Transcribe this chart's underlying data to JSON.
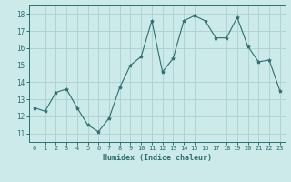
{
  "x": [
    0,
    1,
    2,
    3,
    4,
    5,
    6,
    7,
    8,
    9,
    10,
    11,
    12,
    13,
    14,
    15,
    16,
    17,
    18,
    19,
    20,
    21,
    22,
    23
  ],
  "y": [
    12.5,
    12.3,
    13.4,
    13.6,
    12.5,
    11.5,
    11.1,
    11.9,
    13.7,
    15.0,
    15.5,
    17.6,
    14.6,
    15.4,
    17.6,
    17.9,
    17.6,
    16.6,
    16.6,
    17.8,
    16.1,
    15.2,
    15.3,
    13.5
  ],
  "line_color": "#2d6e6e",
  "marker": "*",
  "marker_size": 3,
  "bg_color": "#cceaea",
  "grid_color": "#b0d4d4",
  "ylabel_ticks": [
    11,
    12,
    13,
    14,
    15,
    16,
    17,
    18
  ],
  "xlabel": "Humidex (Indice chaleur)",
  "xlim": [
    -0.5,
    23.5
  ],
  "ylim": [
    10.5,
    18.5
  ],
  "tick_color": "#2d6e6e",
  "label_color": "#2d6e6e",
  "axis_color": "#2d6e6e",
  "xtick_fontsize": 5.0,
  "ytick_fontsize": 5.5,
  "xlabel_fontsize": 6.0
}
